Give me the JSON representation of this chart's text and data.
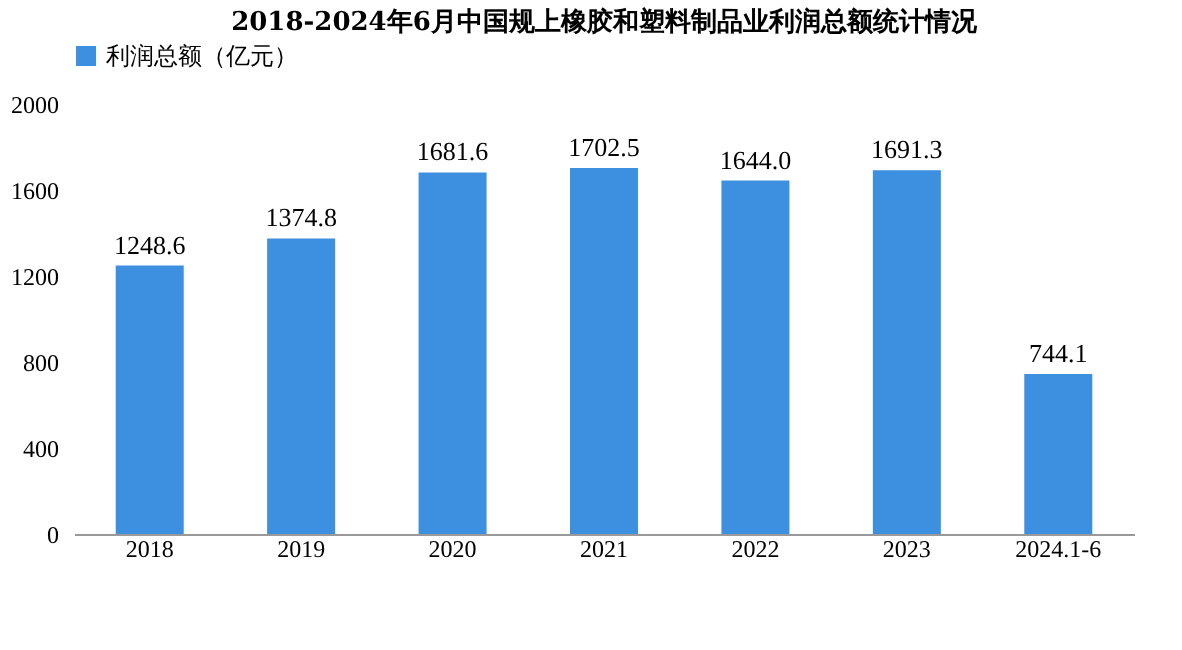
{
  "chart_data": {
    "type": "bar",
    "title": "2018-2024年6月中国规上橡胶和塑料制品业利润总额统计情况",
    "categories": [
      "2018",
      "2019",
      "2020",
      "2021",
      "2022",
      "2023",
      "2024.1-6"
    ],
    "series": [
      {
        "name": "利润总额（亿元）",
        "color": "#3d8fe0",
        "values": [
          1248.6,
          1374.8,
          1681.6,
          1702.5,
          1644.0,
          1691.3,
          744.1
        ],
        "value_labels": [
          "1248.6",
          "1374.8",
          "1681.6",
          "1702.5",
          "1644.0",
          "1691.3",
          "744.1"
        ]
      }
    ],
    "ylim": [
      0,
      2000
    ],
    "yticks": [
      0,
      400,
      800,
      1200,
      1600,
      2000
    ],
    "grid": false,
    "legend": "top"
  }
}
